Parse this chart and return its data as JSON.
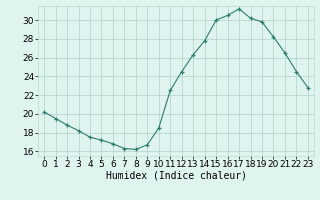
{
  "x": [
    0,
    1,
    2,
    3,
    4,
    5,
    6,
    7,
    8,
    9,
    10,
    11,
    12,
    13,
    14,
    15,
    16,
    17,
    18,
    19,
    20,
    21,
    22,
    23
  ],
  "y": [
    20.2,
    19.5,
    18.8,
    18.2,
    17.5,
    17.2,
    16.8,
    16.3,
    16.2,
    16.7,
    18.5,
    22.5,
    24.5,
    26.3,
    27.8,
    30.0,
    30.5,
    31.2,
    30.2,
    29.8,
    28.2,
    26.5,
    24.5,
    22.8
  ],
  "line_color": "#2e7d6e",
  "marker": "+",
  "marker_size": 3,
  "bg_color": "#dff4ef",
  "grid_color": "#b8d8d0",
  "xlabel": "Humidex (Indice chaleur)",
  "xlim": [
    -0.5,
    23.5
  ],
  "ylim": [
    15.5,
    31.5
  ],
  "yticks": [
    16,
    18,
    20,
    22,
    24,
    26,
    28,
    30
  ],
  "xticks": [
    0,
    1,
    2,
    3,
    4,
    5,
    6,
    7,
    8,
    9,
    10,
    11,
    12,
    13,
    14,
    15,
    16,
    17,
    18,
    19,
    20,
    21,
    22,
    23
  ],
  "xlabel_fontsize": 7,
  "tick_fontsize": 6.5
}
